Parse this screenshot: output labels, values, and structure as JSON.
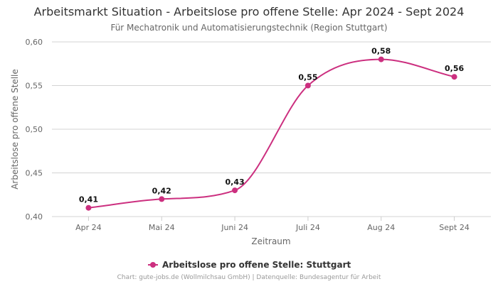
{
  "chart_data": {
    "type": "line",
    "title": "Arbeitsmarkt Situation - Arbeitslose pro offene Stelle: Apr 2024 - Sept 2024",
    "subtitle": "Für Mechatronik und Automatisierungstechnik (Region Stuttgart)",
    "xlabel": "Zeitraum",
    "ylabel": "Arbeitslose pro offene Stelle",
    "categories": [
      "Apr 24",
      "Mai 24",
      "Juni 24",
      "Juli 24",
      "Aug 24",
      "Sept 24"
    ],
    "series": [
      {
        "name": "Arbeitslose pro offene Stelle: Stuttgart",
        "values": [
          0.41,
          0.42,
          0.43,
          0.55,
          0.58,
          0.56
        ],
        "value_labels": [
          "0,41",
          "0,42",
          "0,43",
          "0,55",
          "0,58",
          "0,56"
        ],
        "color": "#cc2f7f"
      }
    ],
    "ylim": [
      0.4,
      0.6
    ],
    "yticks": [
      0.4,
      0.45,
      0.5,
      0.55,
      0.6
    ],
    "ytick_labels": [
      "0,40",
      "0,45",
      "0,50",
      "0,55",
      "0,60"
    ],
    "grid": "horizontal",
    "legend_position": "bottom",
    "footer": "Chart: gute-jobs.de (Wollmilchsau GmbH) | Datenquelle: Bundesagentur für Arbeit"
  }
}
